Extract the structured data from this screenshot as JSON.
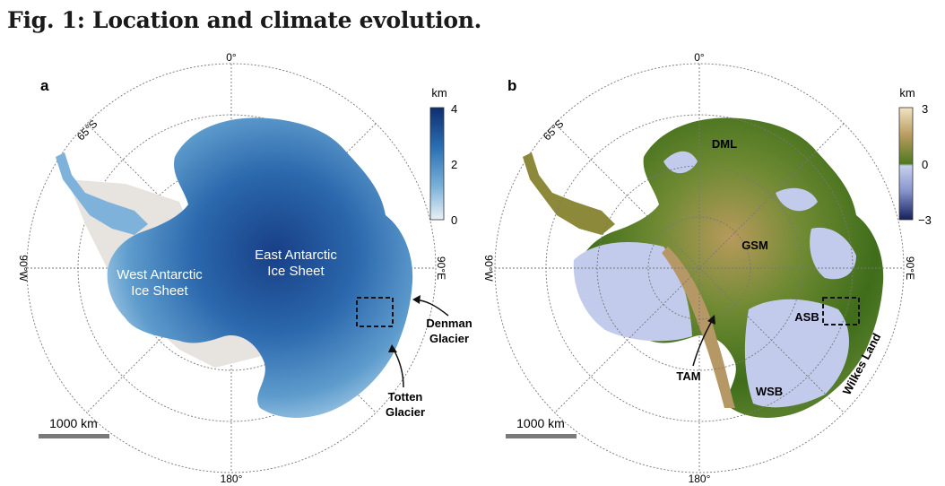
{
  "figure_title": "Fig. 1: Location and climate evolution.",
  "panel_a": {
    "label": "a",
    "graticule": {
      "top": "0°",
      "bottom": "180°",
      "left": "90°W",
      "right": "90°E",
      "lat": "65°S"
    },
    "region_labels": {
      "west_1": "West Antarctic",
      "west_2": "Ice Sheet",
      "east_1": "East Antarctic",
      "east_2": "Ice Sheet"
    },
    "annotations": {
      "denman_1": "Denman",
      "denman_2": "Glacier",
      "totten_1": "Totten",
      "totten_2": "Glacier"
    },
    "colorbar": {
      "unit": "km",
      "ticks": [
        "4",
        "2",
        "0"
      ],
      "colors": [
        "#0f2d6e",
        "#2a6eb2",
        "#7ab0d8",
        "#e9f1f7"
      ]
    },
    "scalebar": "1000 km"
  },
  "panel_b": {
    "label": "b",
    "graticule": {
      "top": "0°",
      "bottom": "180°",
      "left": "90°W",
      "right": "90°E",
      "lat": "65°S"
    },
    "region_labels": {
      "dml": "DML",
      "gsm": "GSM",
      "asb": "ASB",
      "tam": "TAM",
      "wsb": "WSB",
      "wilkes": "Wilkes Land"
    },
    "colorbar": {
      "unit": "km",
      "ticks": [
        "3",
        "0",
        "−3"
      ],
      "colors": [
        "#f2e3c4",
        "#b79a5e",
        "#4e7a1f",
        "#c7d0ef",
        "#15205a"
      ]
    },
    "scalebar": "1000 km"
  }
}
